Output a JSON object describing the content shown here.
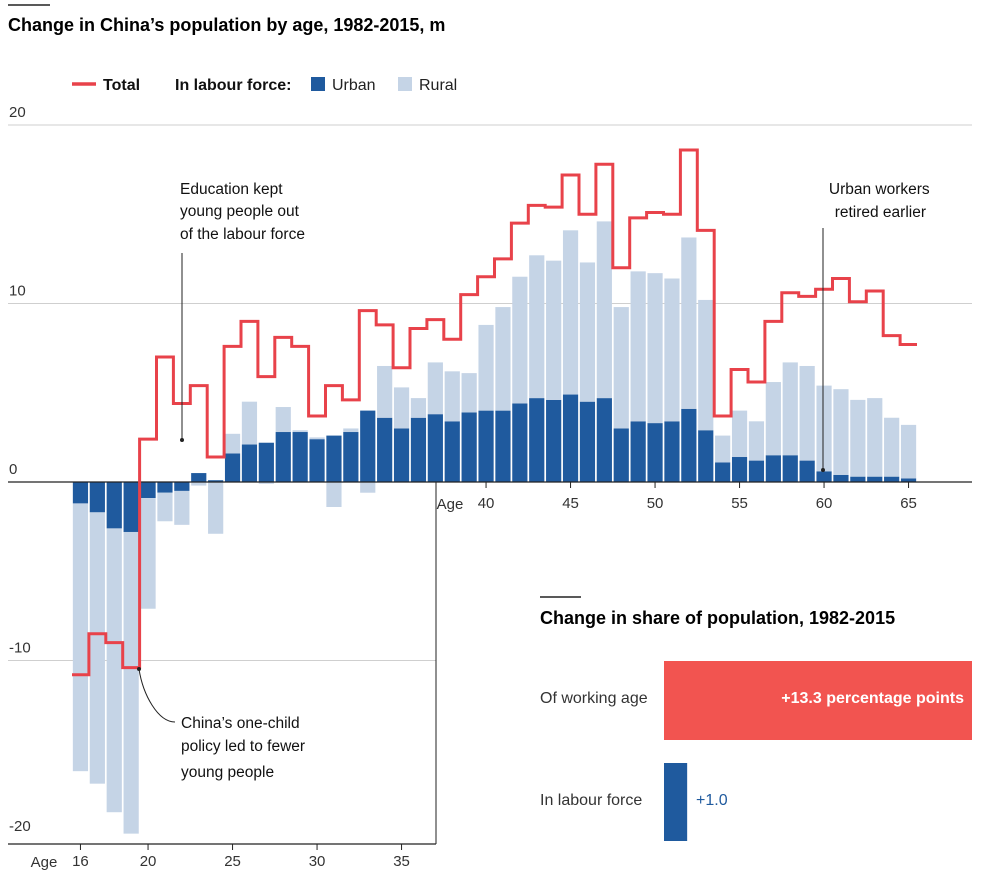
{
  "chart_data": [
    {
      "type": "bar",
      "title": "Change in China’s population by age, 1982-2015, m",
      "xlabel": "Age",
      "ylim": [
        -20,
        20
      ],
      "yticks": [
        20,
        10,
        0,
        -10,
        -20
      ],
      "xticks_upper": [
        40,
        45,
        50,
        55,
        60,
        65
      ],
      "xticks_lower": [
        16,
        20,
        25,
        30,
        35
      ],
      "legend": {
        "total_label": "Total",
        "group_label": "In labour force:",
        "urban_label": "Urban",
        "rural_label": "Rural",
        "placement": "top-left"
      },
      "colors": {
        "total": "#e8424a",
        "urban": "#1f5a9e",
        "rural": "#c5d4e6"
      },
      "ages": [
        16,
        17,
        18,
        19,
        20,
        21,
        22,
        23,
        24,
        25,
        26,
        27,
        28,
        29,
        30,
        31,
        32,
        33,
        34,
        35,
        36,
        37,
        38,
        39,
        40,
        41,
        42,
        43,
        44,
        45,
        46,
        47,
        48,
        49,
        50,
        51,
        52,
        53,
        54,
        55,
        56,
        57,
        58,
        59,
        60,
        61,
        62,
        63,
        64,
        65
      ],
      "series": [
        {
          "name": "Urban",
          "values": [
            -1.2,
            -1.7,
            -2.6,
            -2.8,
            -0.9,
            -0.6,
            -0.5,
            0.5,
            0.1,
            1.6,
            2.1,
            2.2,
            2.8,
            2.8,
            2.4,
            2.6,
            2.8,
            4.0,
            3.6,
            3.0,
            3.6,
            3.8,
            3.4,
            3.9,
            4.0,
            4.0,
            4.4,
            4.7,
            4.6,
            4.9,
            4.5,
            4.7,
            3.0,
            3.4,
            3.3,
            3.4,
            4.1,
            2.9,
            1.1,
            1.4,
            1.2,
            1.5,
            1.5,
            1.2,
            0.6,
            0.4,
            0.3,
            0.3,
            0.3,
            0.2
          ]
        },
        {
          "name": "Rural",
          "values": [
            -15.0,
            -15.2,
            -15.9,
            -16.9,
            -6.2,
            -1.6,
            -1.9,
            -0.2,
            -2.9,
            1.1,
            2.4,
            -0.1,
            1.4,
            0.1,
            0.1,
            -1.4,
            0.2,
            -0.6,
            2.9,
            2.3,
            1.1,
            2.9,
            2.8,
            2.2,
            4.8,
            5.8,
            7.1,
            8.0,
            7.8,
            9.2,
            7.8,
            9.9,
            6.8,
            8.4,
            8.4,
            8.0,
            9.6,
            7.3,
            1.5,
            2.6,
            2.2,
            4.1,
            5.2,
            5.3,
            4.8,
            4.8,
            4.3,
            4.4,
            3.3,
            3.0
          ]
        },
        {
          "name": "Total",
          "values": [
            -10.8,
            -8.5,
            -9.0,
            -10.4,
            2.4,
            7.0,
            4.4,
            5.4,
            1.4,
            7.6,
            9.0,
            5.9,
            8.1,
            7.6,
            3.7,
            5.4,
            4.6,
            9.6,
            8.8,
            6.4,
            8.6,
            9.1,
            8.0,
            10.5,
            11.5,
            12.5,
            14.5,
            15.5,
            15.4,
            17.2,
            15.0,
            17.8,
            12.0,
            14.8,
            15.1,
            15.0,
            18.6,
            14.1,
            3.7,
            6.3,
            5.6,
            9.0,
            10.6,
            10.4,
            10.8,
            11.4,
            10.1,
            10.7,
            8.2,
            7.7
          ]
        }
      ],
      "annotations": [
        {
          "lines": [
            "Education kept",
            "young people out",
            "of the labour force"
          ]
        },
        {
          "lines": [
            "China’s one-child",
            "policy led to fewer",
            "young people"
          ]
        },
        {
          "lines": [
            "Urban workers",
            "retired earlier"
          ]
        }
      ]
    },
    {
      "type": "bar",
      "title": "Change in share of population, 1982-2015",
      "categories": [
        "Of working age",
        "In labour force"
      ],
      "values": [
        13.3,
        1.0
      ],
      "value_labels": [
        "+13.3 percentage points",
        "+1.0"
      ],
      "colors": [
        "#f25450",
        "#1f5a9e"
      ]
    }
  ]
}
